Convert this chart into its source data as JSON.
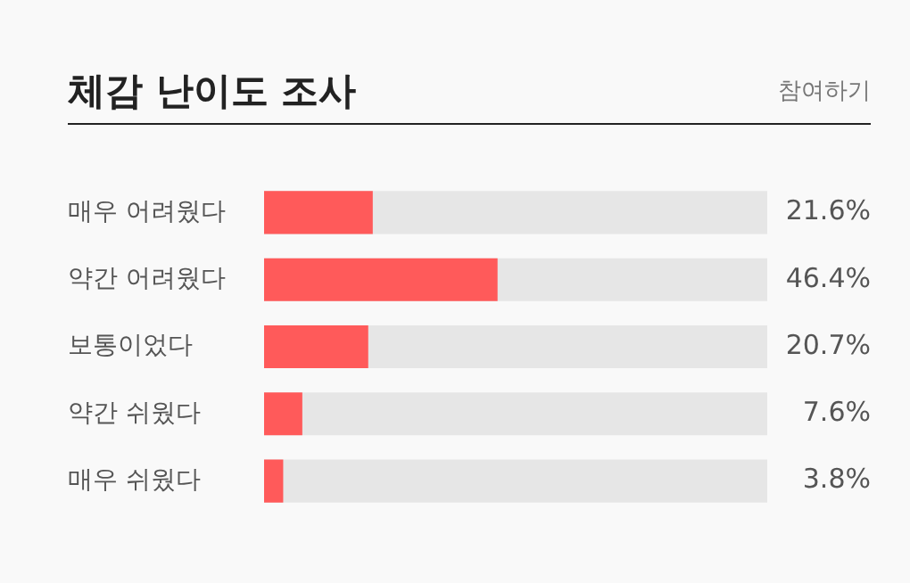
{
  "chart_data": {
    "type": "bar",
    "orientation": "horizontal",
    "title": "체감 난이도 조사",
    "annotations": [
      "참여하기"
    ],
    "categories": [
      "매우 어려웠다",
      "약간 어려웠다",
      "보통이었다",
      "약간 쉬웠다",
      "매우 쉬웠다"
    ],
    "values": [
      21.6,
      46.4,
      20.7,
      7.6,
      3.8
    ],
    "value_labels": [
      "21.6%",
      "46.4%",
      "20.7%",
      "7.6%",
      "3.8%"
    ],
    "color": "#ff5a5a",
    "xlim": [
      0,
      100
    ],
    "tick_labels": "y",
    "grid": false,
    "legend": false
  }
}
